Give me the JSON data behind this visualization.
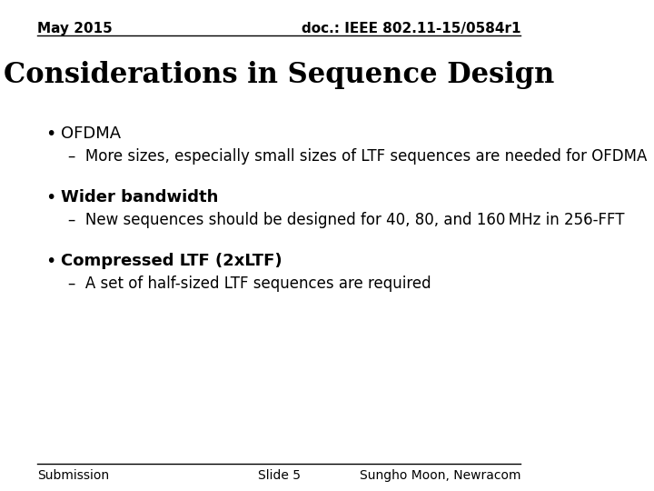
{
  "background_color": "#ffffff",
  "top_left_text": "May 2015",
  "top_right_text": "doc.: IEEE 802.11-15/0584r1",
  "title": "Considerations in Sequence Design",
  "bullet1_header": "OFDMA",
  "bullet1_header_bold": false,
  "bullet1_sub": "–  More sizes, especially small sizes of LTF sequences are needed for OFDMA",
  "bullet2_header": "Wider bandwidth",
  "bullet2_header_bold": true,
  "bullet2_sub": "–  New sequences should be designed for 40, 80, and 160 MHz in 256-FFT",
  "bullet3_header": "Compressed LTF (2xLTF)",
  "bullet3_header_bold": true,
  "bullet3_sub": "–  A set of half-sized LTF sequences are required",
  "footer_left": "Submission",
  "footer_center": "Slide 5",
  "footer_right": "Sungho Moon, Newracom",
  "header_fontsize": 11,
  "title_fontsize": 22,
  "bullet_header_fontsize": 13,
  "bullet_sub_fontsize": 12,
  "footer_fontsize": 10,
  "text_color": "#000000",
  "line_color": "#000000"
}
